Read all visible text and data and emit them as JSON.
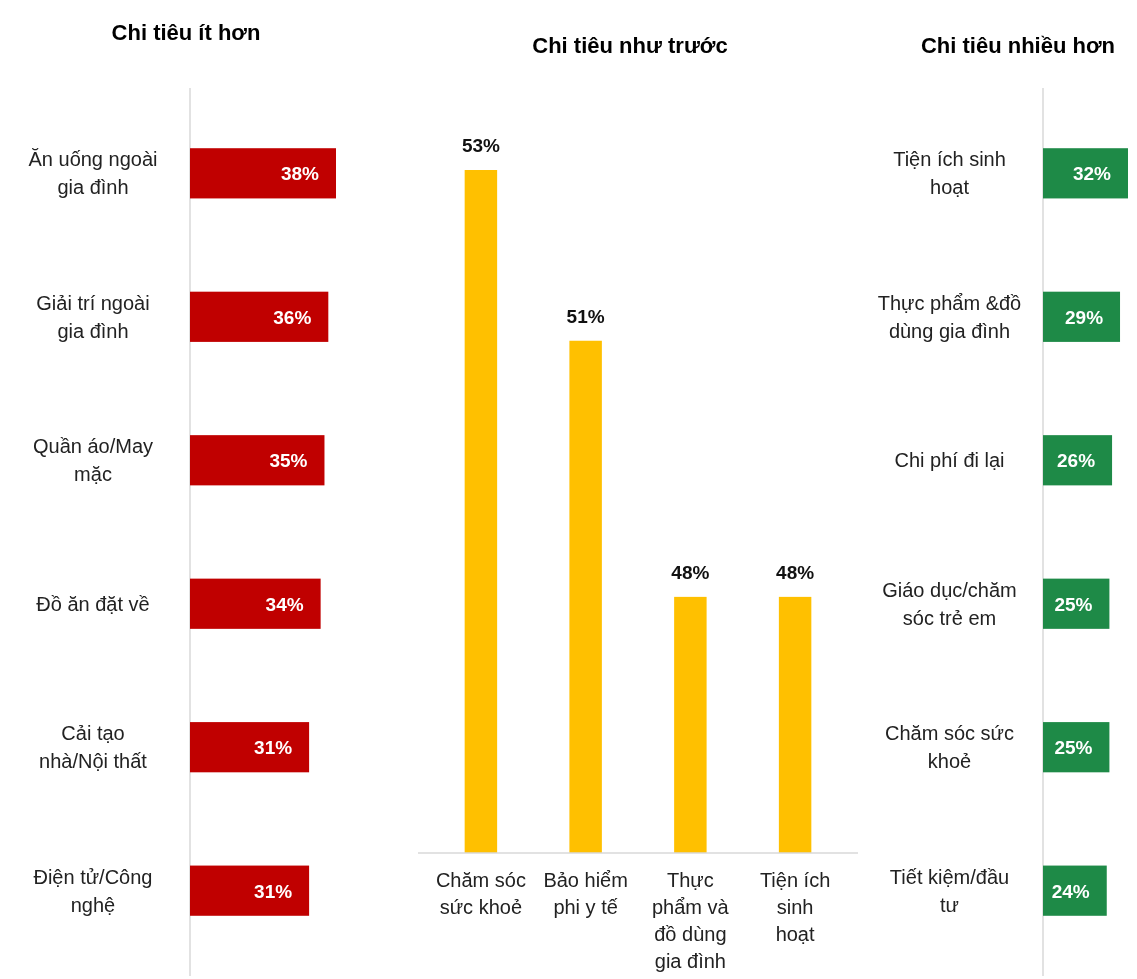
{
  "chart_data": [
    {
      "type": "bar",
      "orientation": "horizontal",
      "title": "Chi tiêu ít hơn",
      "categories": [
        "Ăn uống ngoài gia đình",
        "Giải trí ngoài gia đình",
        "Quần áo/May mặc",
        "Đồ ăn đặt về",
        "Cải tạo nhà/Nội thất",
        "Điện tử/Công nghệ"
      ],
      "values": [
        38,
        36,
        35,
        34,
        31,
        31
      ],
      "value_labels": [
        "38%",
        "36%",
        "35%",
        "34%",
        "31%",
        "31%"
      ],
      "color": "#c00000"
    },
    {
      "type": "bar",
      "title": "Chi tiêu như trước",
      "categories": [
        "Chăm sóc sức khoẻ",
        "Bảo hiểm phi y tế",
        "Thực phẩm và đồ dùng gia đình",
        "Tiện ích sinh hoạt"
      ],
      "values": [
        53,
        51,
        48,
        48
      ],
      "value_labels": [
        "53%",
        "51%",
        "48%",
        "48%"
      ],
      "ylim": [
        45,
        53
      ],
      "color": "#ffc000"
    },
    {
      "type": "bar",
      "orientation": "horizontal",
      "title": "Chi tiêu nhiều hơn",
      "categories": [
        "Tiện ích sinh hoạt",
        "Thực phẩm &đồ dùng gia đình",
        "Chi phí đi lại",
        "Giáo dục/chăm sóc trẻ em",
        "Chăm sóc sức khoẻ",
        "Tiết kiệm/đầu tư"
      ],
      "values": [
        32,
        29,
        26,
        25,
        25,
        24
      ],
      "value_labels": [
        "32%",
        "29%",
        "26%",
        "25%",
        "25%",
        "24%"
      ],
      "color": "#1e8a47"
    }
  ]
}
